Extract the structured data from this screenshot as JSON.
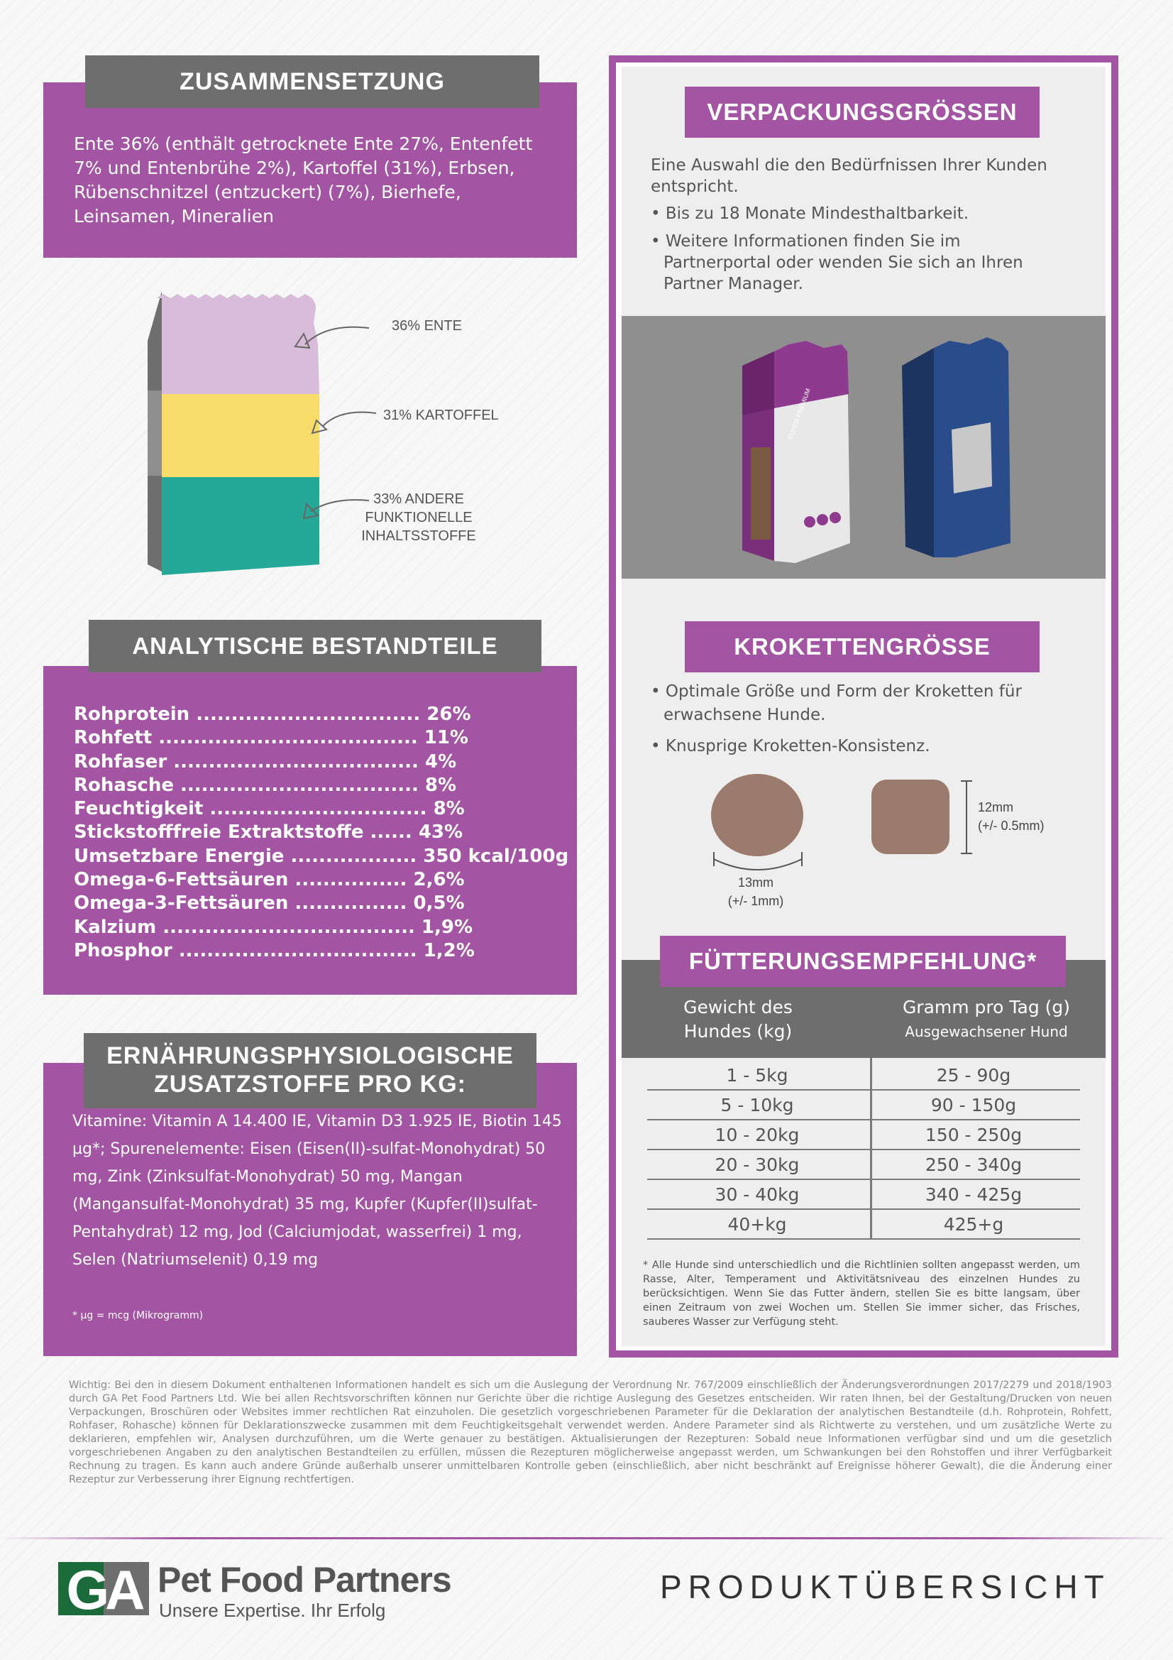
{
  "zusammensetzung": {
    "title": "ZUSAMMENSETZUNG",
    "text": "Ente 36% (enthält getrocknete Ente 27%, Entenfett 7% und Entenbrühe 2%), Kartoffel (31%), Erbsen, Rübenschnitzel (entzuckert) (7%), Bierhefe, Leinsamen, Mineralien"
  },
  "bag_chart": {
    "layers": [
      {
        "label": "36% ENTE",
        "percent": 36,
        "color": "#d9bcd9"
      },
      {
        "label": "31% KARTOFFEL",
        "percent": 31,
        "color": "#f8dc6a"
      },
      {
        "label": "33% ANDERE FUNKTIONELLE INHALTSSTOFFE",
        "label_lines": [
          "33% ANDERE",
          "FUNKTIONELLE",
          "INHALTSSTOFFE"
        ],
        "percent": 33,
        "color": "#26a899"
      }
    ]
  },
  "analytisch": {
    "title": "ANALYTISCHE BESTANDTEILE",
    "items": [
      "Rohprotein ................................ 26%",
      "Rohfett ..................................... 11%",
      "Rohfaser ................................... 4%",
      "Rohasche .................................. 8%",
      "Feuchtigkeit ............................... 8%",
      "Stickstofffreie Extraktstoffe ...... 43%",
      "Umsetzbare Energie .................. 350 kcal/100g",
      "Omega-6-Fettsäuren ................ 2,6%",
      "Omega-3-Fettsäuren ................ 0,5%",
      "Kalzium .................................... 1,9%",
      "Phosphor .................................. 1,2%"
    ]
  },
  "zusatzstoffe": {
    "title_line1": "ERNÄHRUNGSPHYSIOLOGISCHE",
    "title_line2": "ZUSATZSTOFFE PRO KG:",
    "text": "Vitamine: Vitamin A 14.400 IE, Vitamin D3 1.925 IE, Biotin 145 µg*; Spurenelemente: Eisen (Eisen(II)-sulfat-Monohydrat) 50 mg, Zink (Zinksulfat-Monohydrat) 50 mg, Mangan (Mangansulfat-Monohydrat) 35 mg, Kupfer (Kupfer(II)sulfat-Pentahydrat) 12 mg, Jod (Calciumjodat, wasserfrei) 1 mg, Selen (Natriumselenit) 0,19 mg",
    "note": "* µg = mcg (Mikrogramm)"
  },
  "verpackung": {
    "title": "VERPACKUNGSGRÖSSEN",
    "intro": "Eine Auswahl die den Bedürfnissen Ihrer Kunden entspricht.",
    "bullets": [
      "Bis zu 18 Monate Mindesthaltbarkeit.",
      "Weitere Informationen finden Sie im Partnerportal oder wenden Sie sich an Ihren Partner Manager."
    ],
    "bag_label": "SUPER PREMIUM",
    "bag_colors": {
      "purple": "#8e3a8e",
      "blue": "#2a4c8a"
    }
  },
  "krokette": {
    "title": "KROKETTENGRÖSSE",
    "bullets": [
      "Optimale Größe und Form der Kroketten für erwachsene Hunde.",
      "Knusprige Kroketten-Konsistenz."
    ],
    "width_line1": "13mm",
    "width_line2": "(+/- 1mm)",
    "height_line1": "12mm",
    "height_line2": "(+/- 0.5mm)",
    "kibble_color": "#9b7b6d"
  },
  "fuetterung": {
    "title": "FÜTTERUNGSEMPFEHLUNG*",
    "col1_line1": "Gewicht des",
    "col1_line2": "Hundes (kg)",
    "col2": "Gramm pro Tag (g)",
    "col2_sub": "Ausgewachsener Hund",
    "rows": [
      {
        "weight": "1 - 5kg",
        "gram": "25 - 90g"
      },
      {
        "weight": "5 - 10kg",
        "gram": "90 - 150g"
      },
      {
        "weight": "10 - 20kg",
        "gram": "150 - 250g"
      },
      {
        "weight": "20 - 30kg",
        "gram": "250 - 340g"
      },
      {
        "weight": "30 - 40kg",
        "gram": "340 - 425g"
      },
      {
        "weight": "40+kg",
        "gram": "425+g"
      }
    ],
    "footnote": "* Alle Hunde sind unterschiedlich und die Richtlinien sollten angepasst werden, um Rasse, Alter, Temperament und Aktivitätsniveau des einzelnen Hundes zu berücksichtigen. Wenn Sie das Futter ändern, stellen Sie es bitte langsam, über einen Zeitraum von zwei Wochen um. Stellen Sie immer sicher, das Frisches, sauberes Wasser zur Verfügung steht."
  },
  "disclaimer": "Wichtig: Bei den in diesem Dokument enthaltenen Informationen handelt es sich um die Auslegung der Verordnung Nr. 767/2009 einschließlich der Änderungsverordnungen 2017/2279 und 2018/1903 durch GA Pet Food Partners Ltd. Wie bei allen Rechtsvorschriften können nur Gerichte über die richtige Auslegung des Gesetzes entscheiden. Wir raten Ihnen, bei der Gestaltung/Drucken von neuen Verpackungen, Broschüren oder Websites immer rechtlichen Rat einzuholen. Die gesetzlich vorgeschriebenen Parameter für die Deklaration der analytischen Bestandteile (d.h. Rohprotein, Rohfett, Rohfaser, Rohasche) können für Deklarationszwecke zusammen mit dem Feuchtigkeitsgehalt verwendet werden. Andere Parameter sind als Richtwerte zu verstehen, und um zusätzliche Werte zu deklarieren, empfehlen wir, Analysen durchzuführen, um die Werte genauer zu bestätigen. Aktualisierungen der Rezepturen: Sobald neue Informationen verfügbar sind und um die gesetzlich vorgeschriebenen Angaben zu den analytischen Bestandteilen zu erfüllen, müssen die Rezepturen möglicherweise angepasst werden, um Schwankungen bei den Rohstoffen und ihrer Verfügbarkeit Rechnung zu tragen. Es kann auch andere Gründe außerhalb unserer unmittelbaren Kontrolle geben (einschließlich, aber nicht beschränkt auf Ereignisse höherer Gewalt), die die Änderung einer Rezeptur zur Verbesserung ihrer Eignung rechtfertigen.",
  "footer": {
    "logo_mark": "GA",
    "brand": "Pet Food Partners",
    "tagline": "Unsere Expertise. Ihr Erfolg",
    "label": "PRODUKTÜBERSICHT",
    "colors": {
      "green": "#1b6b3a",
      "gray": "#6e6e6e",
      "line": "#a355a3"
    }
  }
}
